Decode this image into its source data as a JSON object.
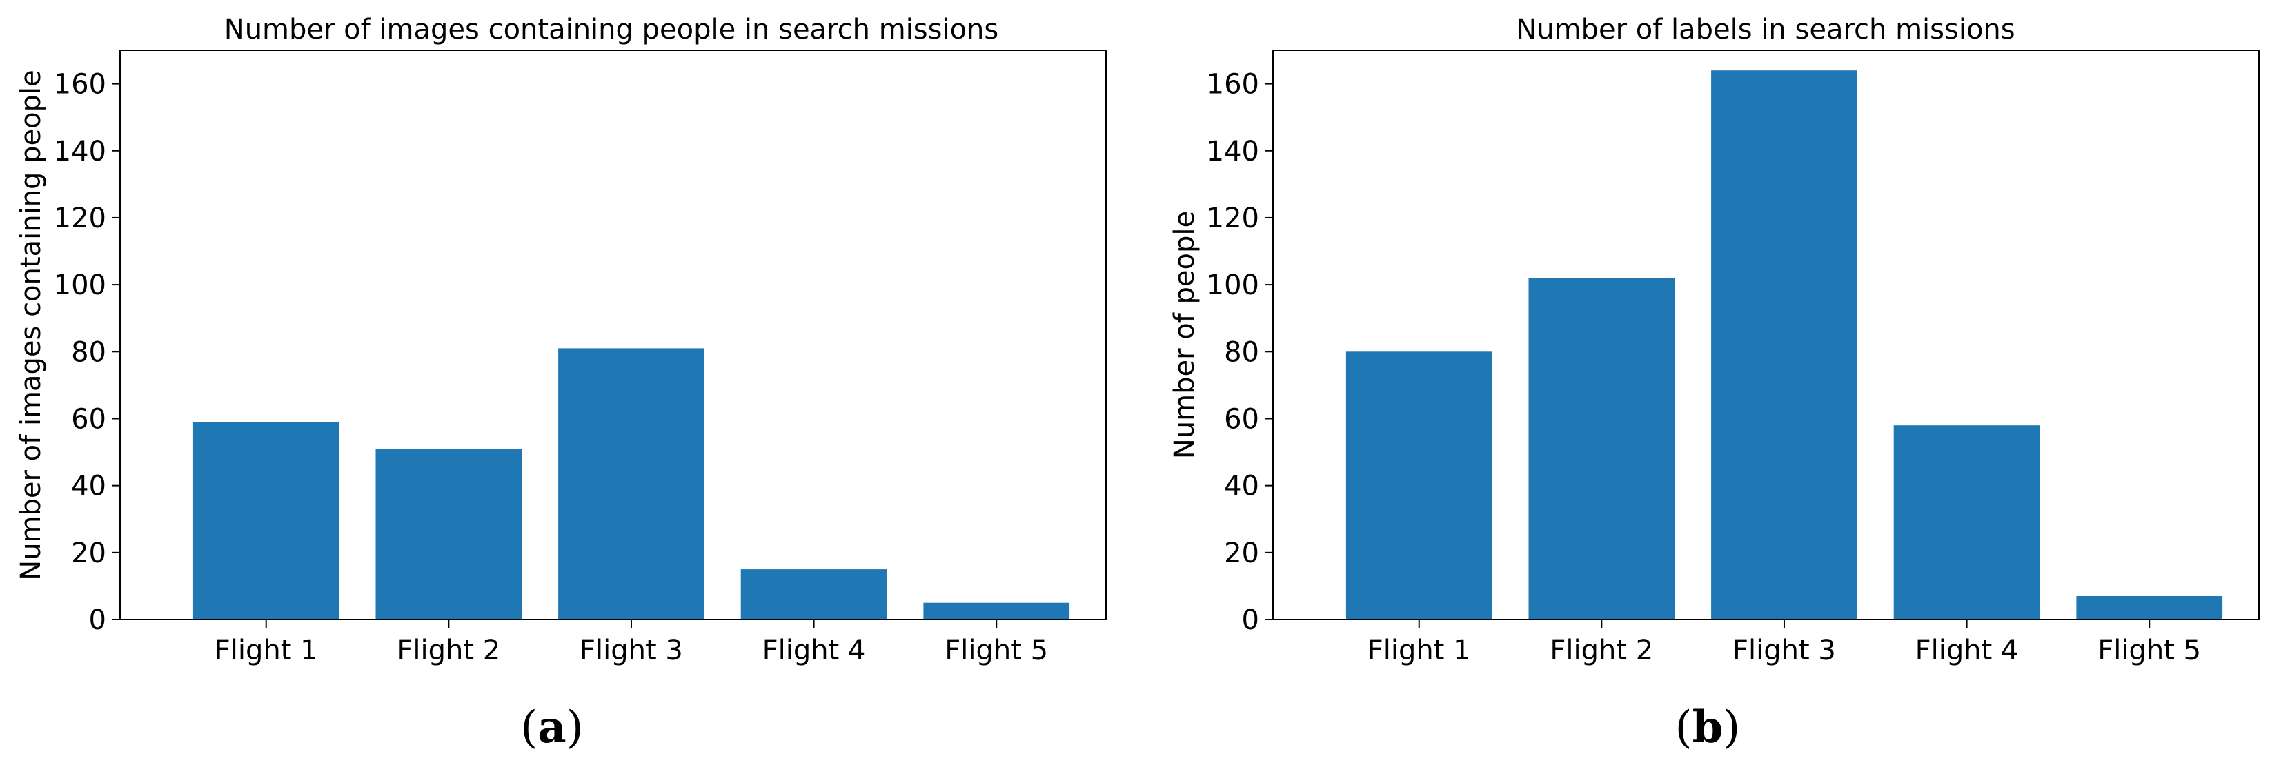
{
  "chart_data": [
    {
      "type": "bar",
      "title": "Number of images containing people in search missions",
      "xlabel": "",
      "ylabel": "Number of images containing people",
      "categories": [
        "Flight 1",
        "Flight 2",
        "Flight 3",
        "Flight 4",
        "Flight 5"
      ],
      "values": [
        59,
        51,
        81,
        15,
        5
      ],
      "ylim": [
        0,
        170
      ],
      "yticks": [
        0,
        20,
        40,
        60,
        80,
        100,
        120,
        140,
        160
      ],
      "bar_color": "#1f77b4",
      "grid": false,
      "panel_label": "(a)"
    },
    {
      "type": "bar",
      "title": "Number of labels in search missions",
      "xlabel": "",
      "ylabel": "Number of people",
      "categories": [
        "Flight 1",
        "Flight 2",
        "Flight 3",
        "Flight 4",
        "Flight 5"
      ],
      "values": [
        80,
        102,
        164,
        58,
        7
      ],
      "ylim": [
        0,
        170
      ],
      "yticks": [
        0,
        20,
        40,
        60,
        80,
        100,
        120,
        140,
        160
      ],
      "bar_color": "#1f77b4",
      "grid": false,
      "panel_label": "(b)"
    }
  ]
}
